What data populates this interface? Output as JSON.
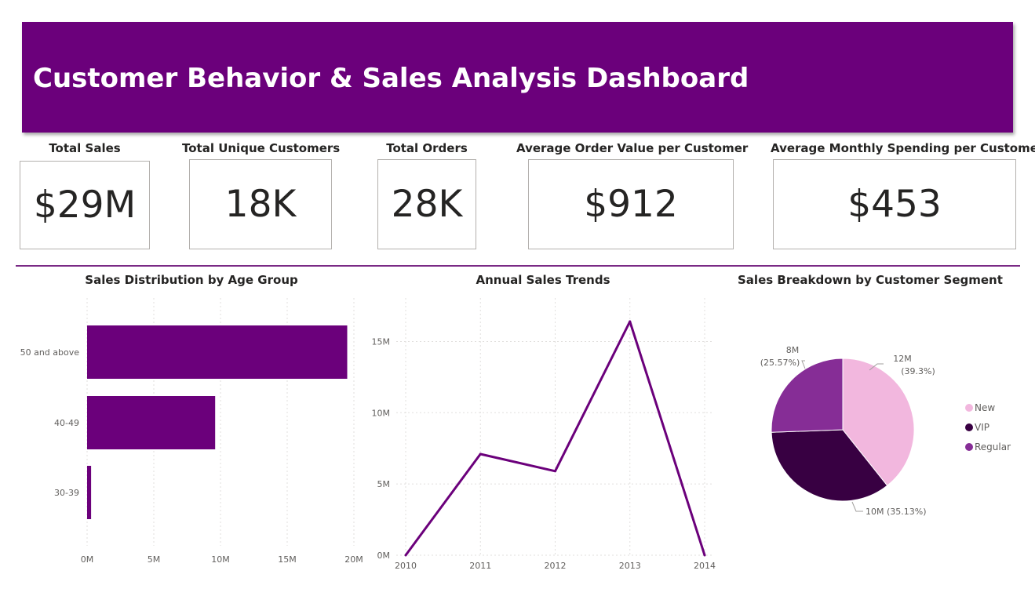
{
  "dashboard": {
    "title": "Customer Behavior & Sales Analysis Dashboard"
  },
  "kpis": [
    {
      "label": "Total Sales",
      "value": "$29M"
    },
    {
      "label": "Total Unique Customers",
      "value": "18K"
    },
    {
      "label": "Total Orders",
      "value": "28K"
    },
    {
      "label": "Average Order Value per Customer",
      "value": "$912"
    },
    {
      "label": "Average Monthly Spending per Customer",
      "value": "$453"
    }
  ],
  "colors": {
    "accent": "#6b007b",
    "new": "#f2b7de",
    "vip": "#380042",
    "regular": "#862d96"
  },
  "chart_data": [
    {
      "type": "bar",
      "orientation": "horizontal",
      "title": "Sales Distribution by Age Group",
      "categories": [
        "50 and above",
        "40-49",
        "30-39"
      ],
      "values": [
        19.5,
        9.6,
        0.3
      ],
      "value_unit": "M",
      "xlim": [
        0,
        20
      ],
      "x_ticks": [
        "0M",
        "5M",
        "10M",
        "15M",
        "20M"
      ],
      "grid": true
    },
    {
      "type": "line",
      "title": "Annual Sales Trends",
      "x": [
        "2010",
        "2011",
        "2012",
        "2013",
        "2014"
      ],
      "values": [
        0.0,
        7.1,
        5.9,
        16.4,
        0.0
      ],
      "value_unit": "M",
      "ylim": [
        0,
        16.4
      ],
      "y_ticks": [
        "0M",
        "5M",
        "10M",
        "15M"
      ],
      "grid": true
    },
    {
      "type": "pie",
      "title": "Sales Breakdown by Customer Segment",
      "slices": [
        {
          "name": "New",
          "value": "12M",
          "percent": 39.3,
          "label": "12M (39.3%)",
          "label_line1": "12M",
          "label_line2": "(39.3%)"
        },
        {
          "name": "VIP",
          "value": "10M",
          "percent": 35.13,
          "label": "10M (35.13%)"
        },
        {
          "name": "Regular",
          "value": "8M",
          "percent": 25.57,
          "label": "8M (25.57%)",
          "label_line1": "8M",
          "label_line2": "(25.57%)"
        }
      ],
      "legend_position": "right"
    }
  ]
}
